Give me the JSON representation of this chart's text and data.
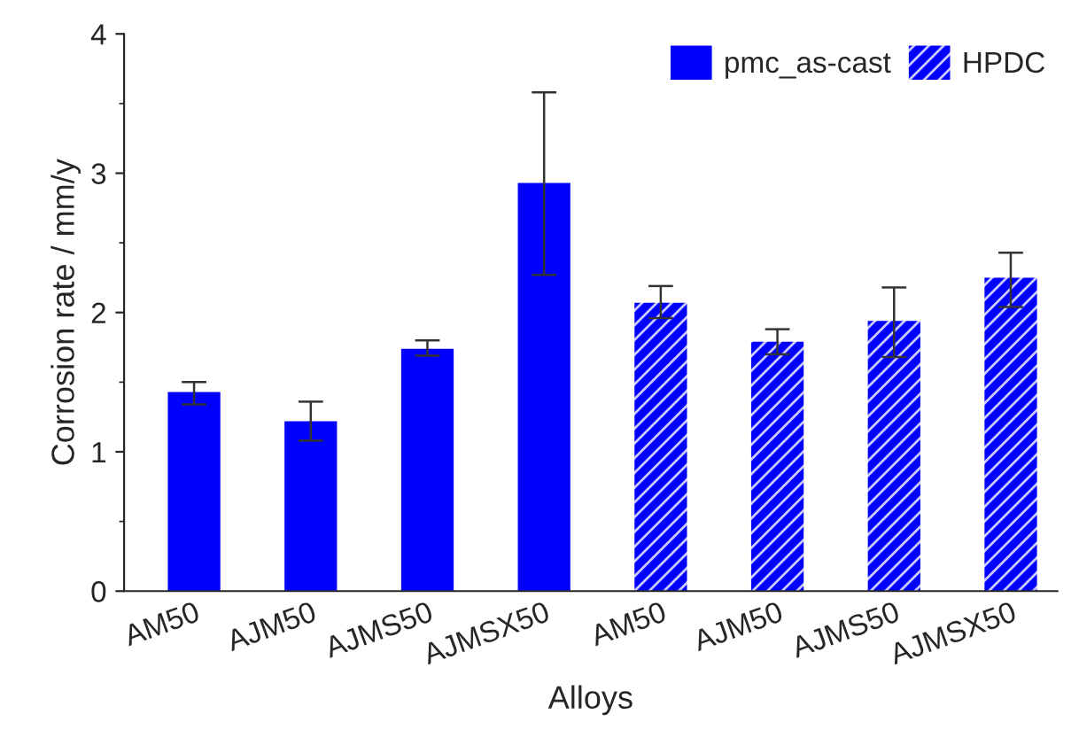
{
  "chart_data": {
    "type": "bar",
    "xlabel": "Alloys",
    "ylabel": "Corrosion rate / mm/y",
    "categories": [
      "AM50",
      "AJM50",
      "AJMS50",
      "AJMSX50",
      "AM50",
      "AJM50",
      "AJMS50",
      "AJMSX50"
    ],
    "series": [
      {
        "name": "pmc_as-cast",
        "color": "#0000ff",
        "values": [
          1.43,
          1.22,
          1.74,
          2.93,
          null,
          null,
          null,
          null
        ],
        "errors": [
          [
            1.34,
            1.5
          ],
          [
            1.08,
            1.36
          ],
          [
            1.69,
            1.8
          ],
          [
            2.27,
            3.58
          ],
          null,
          null,
          null,
          null
        ]
      },
      {
        "name": "HPDC",
        "color": "#0000ff",
        "values": [
          null,
          null,
          null,
          null,
          2.07,
          1.79,
          1.94,
          2.25
        ],
        "errors": [
          null,
          null,
          null,
          null,
          [
            1.96,
            2.19
          ],
          [
            1.7,
            1.88
          ],
          [
            1.68,
            2.18
          ],
          [
            2.04,
            2.43
          ]
        ]
      }
    ],
    "ylim": [
      0,
      4
    ],
    "yticks": [
      0,
      1,
      2,
      3,
      4
    ],
    "grid": false,
    "legend": "top right"
  }
}
